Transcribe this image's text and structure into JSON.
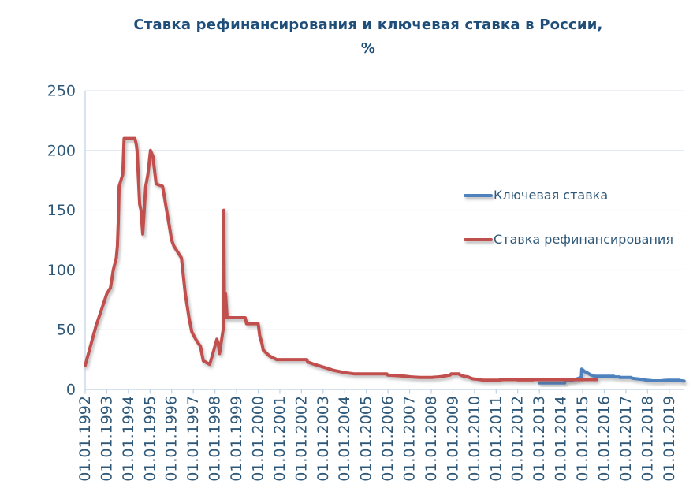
{
  "title": {
    "line1": "Ставка рефинансирования и ключевая ставка в России,",
    "line2": "%"
  },
  "colors": {
    "title_text": "#1F4E79",
    "axis_text": "#2F5878",
    "legend_text": "#2F5878",
    "gridline": "#D9E2EE",
    "axis_line": "#BDD0E4",
    "key_rate": "#4F81BD",
    "refinancing_rate": "#C0504D"
  },
  "legend": {
    "items": [
      {
        "label": "Ключевая ставка",
        "color": "#4F81BD"
      },
      {
        "label": "Ставка рефинансирования",
        "color": "#C0504D"
      }
    ]
  },
  "chart_data": {
    "type": "line",
    "title": "Ставка рефинансирования и ключевая ставка в России, %",
    "grid": true,
    "legend_position": "middle-right",
    "x_axis": {
      "kind": "date",
      "min_year": 1992.0,
      "max_year": 2019.7,
      "tick_years": [
        1992,
        1993,
        1994,
        1995,
        1996,
        1997,
        1998,
        1999,
        2000,
        2001,
        2002,
        2003,
        2004,
        2005,
        2006,
        2007,
        2008,
        2009,
        2010,
        2011,
        2012,
        2013,
        2014,
        2015,
        2016,
        2017,
        2018,
        2019
      ],
      "tick_labels": [
        "01.01.1992",
        "01.01.1993",
        "01.01.1994",
        "01.01.1995",
        "01.01.1996",
        "01.01.1997",
        "01.01.1998",
        "01.01.1999",
        "01.01.2000",
        "01.01.2001",
        "01.01.2002",
        "01.01.2003",
        "01.01.2004",
        "01.01.2005",
        "01.01.2006",
        "01.01.2007",
        "01.01.2008",
        "01.01.2009",
        "01.01.2010",
        "01.01.2011",
        "01.01.2012",
        "01.01.2013",
        "01.01.2014",
        "01.01.2015",
        "01.01.2016",
        "01.01.2017",
        "01.01.2018",
        "01.01.2019"
      ]
    },
    "y_axis": {
      "min": 0,
      "max": 250,
      "ticks": [
        0,
        50,
        100,
        150,
        200,
        250
      ],
      "unit": "%"
    },
    "series": [
      {
        "name": "Ключевая ставка",
        "color": "#4F81BD",
        "points": [
          [
            2013.0,
            5.5
          ],
          [
            2014.17,
            5.5
          ],
          [
            2014.18,
            7
          ],
          [
            2014.33,
            7.5
          ],
          [
            2014.57,
            8
          ],
          [
            2014.85,
            9.5
          ],
          [
            2014.94,
            10.5
          ],
          [
            2014.96,
            17
          ],
          [
            2015.09,
            15
          ],
          [
            2015.21,
            14
          ],
          [
            2015.34,
            12.5
          ],
          [
            2015.46,
            11.5
          ],
          [
            2015.59,
            11
          ],
          [
            2016.45,
            11
          ],
          [
            2016.46,
            10.5
          ],
          [
            2016.71,
            10.5
          ],
          [
            2016.72,
            10
          ],
          [
            2017.23,
            10
          ],
          [
            2017.24,
            9.75
          ],
          [
            2017.34,
            9.25
          ],
          [
            2017.47,
            9
          ],
          [
            2017.71,
            8.5
          ],
          [
            2017.83,
            8.25
          ],
          [
            2017.96,
            7.75
          ],
          [
            2018.12,
            7.5
          ],
          [
            2018.23,
            7.25
          ],
          [
            2018.7,
            7.25
          ],
          [
            2018.71,
            7.5
          ],
          [
            2018.96,
            7.75
          ],
          [
            2019.45,
            7.75
          ],
          [
            2019.46,
            7.5
          ],
          [
            2019.57,
            7.25
          ],
          [
            2019.69,
            7
          ]
        ]
      },
      {
        "name": "Ставка рефинансирования",
        "color": "#C0504D",
        "points": [
          [
            1992.0,
            20
          ],
          [
            1992.5,
            53
          ],
          [
            1993.0,
            80
          ],
          [
            1993.17,
            85
          ],
          [
            1993.3,
            100
          ],
          [
            1993.44,
            110
          ],
          [
            1993.49,
            120
          ],
          [
            1993.53,
            140
          ],
          [
            1993.57,
            170
          ],
          [
            1993.74,
            180
          ],
          [
            1993.8,
            210
          ],
          [
            1994.3,
            210
          ],
          [
            1994.36,
            205
          ],
          [
            1994.4,
            200
          ],
          [
            1994.44,
            185
          ],
          [
            1994.48,
            170
          ],
          [
            1994.52,
            155
          ],
          [
            1994.58,
            150
          ],
          [
            1994.66,
            130
          ],
          [
            1994.8,
            170
          ],
          [
            1994.9,
            180
          ],
          [
            1995.02,
            200
          ],
          [
            1995.13,
            195
          ],
          [
            1995.28,
            172
          ],
          [
            1995.58,
            170
          ],
          [
            1996.0,
            125
          ],
          [
            1996.1,
            120
          ],
          [
            1996.45,
            110
          ],
          [
            1996.63,
            80
          ],
          [
            1996.8,
            60
          ],
          [
            1996.93,
            48
          ],
          [
            1997.11,
            42
          ],
          [
            1997.33,
            36
          ],
          [
            1997.46,
            24
          ],
          [
            1997.76,
            21
          ],
          [
            1997.87,
            28
          ],
          [
            1998.09,
            42
          ],
          [
            1998.14,
            39
          ],
          [
            1998.17,
            36
          ],
          [
            1998.21,
            30
          ],
          [
            1998.38,
            50
          ],
          [
            1998.41,
            150
          ],
          [
            1998.44,
            60
          ],
          [
            1998.49,
            80
          ],
          [
            1998.56,
            60
          ],
          [
            1999.4,
            60
          ],
          [
            1999.46,
            55
          ],
          [
            2000.0,
            55
          ],
          [
            2000.07,
            45
          ],
          [
            2000.18,
            38
          ],
          [
            2000.23,
            33
          ],
          [
            2000.52,
            28
          ],
          [
            2000.85,
            25
          ],
          [
            2002.25,
            25
          ],
          [
            2002.28,
            23
          ],
          [
            2002.6,
            21
          ],
          [
            2003.13,
            18
          ],
          [
            2003.47,
            16
          ],
          [
            2004.04,
            14
          ],
          [
            2004.46,
            13
          ],
          [
            2005.95,
            13
          ],
          [
            2005.99,
            12
          ],
          [
            2006.49,
            11.5
          ],
          [
            2006.81,
            11
          ],
          [
            2007.08,
            10.5
          ],
          [
            2007.47,
            10
          ],
          [
            2008.05,
            10
          ],
          [
            2008.1,
            10.25
          ],
          [
            2008.33,
            10.5
          ],
          [
            2008.44,
            10.75
          ],
          [
            2008.54,
            11
          ],
          [
            2008.87,
            12
          ],
          [
            2008.92,
            13
          ],
          [
            2009.28,
            13
          ],
          [
            2009.31,
            12.5
          ],
          [
            2009.37,
            12
          ],
          [
            2009.43,
            11.5
          ],
          [
            2009.53,
            11
          ],
          [
            2009.61,
            10.75
          ],
          [
            2009.71,
            10.5
          ],
          [
            2009.75,
            10
          ],
          [
            2009.83,
            9.5
          ],
          [
            2009.9,
            9
          ],
          [
            2010.0,
            8.75
          ],
          [
            2010.15,
            8.5
          ],
          [
            2010.24,
            8.25
          ],
          [
            2010.33,
            8
          ],
          [
            2010.42,
            7.75
          ],
          [
            2011.15,
            7.75
          ],
          [
            2011.17,
            8
          ],
          [
            2011.34,
            8.25
          ],
          [
            2011.98,
            8.25
          ],
          [
            2012.0,
            8
          ],
          [
            2012.7,
            8
          ],
          [
            2012.72,
            8.25
          ],
          [
            2015.65,
            8.25
          ]
        ]
      }
    ]
  }
}
